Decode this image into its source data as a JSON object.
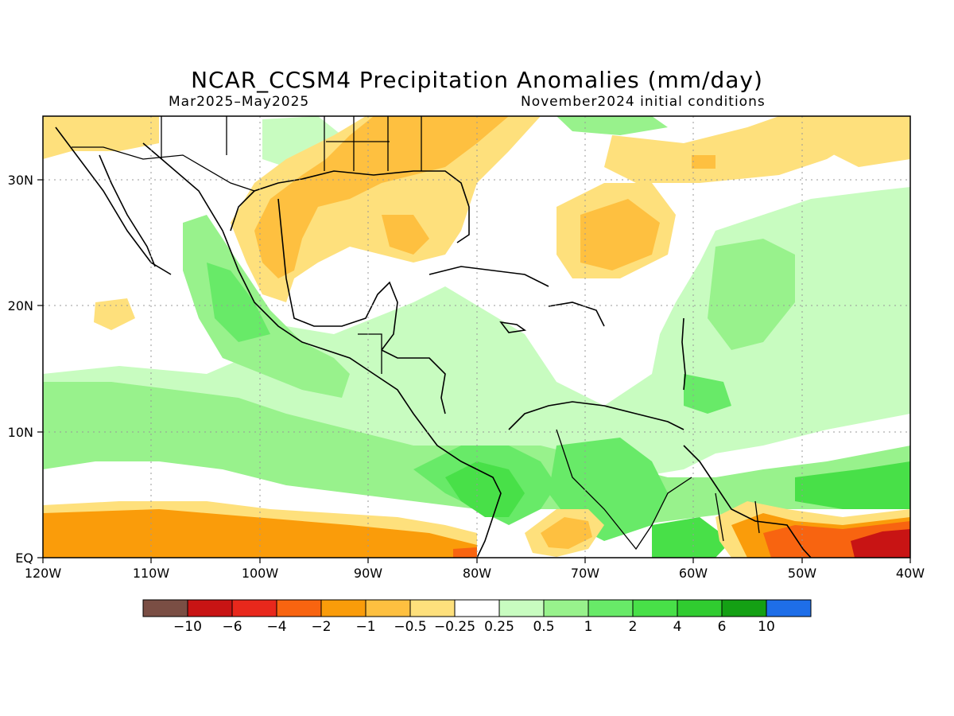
{
  "header": {
    "title": "NCAR_CCSM4 Precipitation Anomalies (mm/day)",
    "period": "Mar2025–May2025",
    "initial_conditions": "November2024 initial conditions"
  },
  "map": {
    "lon_ticks": [
      "120W",
      "110W",
      "100W",
      "90W",
      "80W",
      "70W",
      "60W",
      "50W",
      "40W"
    ],
    "lat_ticks": [
      "EQ",
      "10N",
      "20N",
      "30N"
    ],
    "lon_range": [
      -120,
      -40
    ],
    "lat_range": [
      0,
      35
    ],
    "grid": "dotted"
  },
  "colorbar": {
    "colors": [
      "#7a4e44",
      "#c81414",
      "#e8281c",
      "#f86410",
      "#fa9c0a",
      "#fec040",
      "#fee07c",
      "#ffffff",
      "#c8fcc0",
      "#98f28c",
      "#68ea68",
      "#48e048",
      "#30cc30",
      "#14a014",
      "#1e6ee8"
    ],
    "labels": [
      "−10",
      "−6",
      "−4",
      "−2",
      "−1",
      "−0.5",
      "−0.25",
      "0.25",
      "0.5",
      "1",
      "2",
      "4",
      "6",
      "10"
    ]
  }
}
